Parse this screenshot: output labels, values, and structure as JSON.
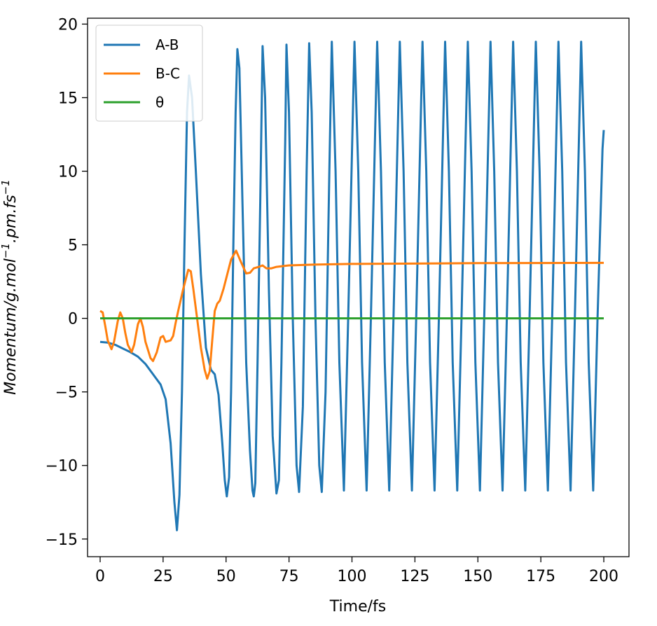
{
  "chart_data": {
    "type": "line",
    "title": "",
    "xlabel": "Time/fs",
    "ylabel_parts": [
      "Momentum/",
      "g",
      ".",
      "mol",
      "−1",
      ".",
      "pm",
      ".",
      "fs",
      "−1"
    ],
    "xlim": [
      -5,
      210
    ],
    "ylim": [
      -16.2,
      20.4
    ],
    "xticks": [
      0,
      25,
      50,
      75,
      100,
      125,
      150,
      175,
      200
    ],
    "xtick_labels": [
      "0",
      "25",
      "50",
      "75",
      "100",
      "125",
      "150",
      "175",
      "200"
    ],
    "yticks": [
      -15,
      -10,
      -5,
      0,
      5,
      10,
      15,
      20
    ],
    "ytick_labels": [
      "−15",
      "−10",
      "−5",
      "0",
      "5",
      "10",
      "15",
      "20"
    ],
    "legend_position": "top-left",
    "series": [
      {
        "name": "A-B",
        "color": "#1f77b4",
        "points": [
          [
            0,
            -1.6
          ],
          [
            3,
            -1.65
          ],
          [
            6,
            -1.8
          ],
          [
            9,
            -2.05
          ],
          [
            12,
            -2.3
          ],
          [
            15,
            -2.6
          ],
          [
            18,
            -3.1
          ],
          [
            21,
            -3.8
          ],
          [
            24,
            -4.5
          ],
          [
            26,
            -5.5
          ],
          [
            28,
            -8.5
          ],
          [
            29.5,
            -12.5
          ],
          [
            30.5,
            -14.4
          ],
          [
            31.5,
            -12
          ],
          [
            32.5,
            -5
          ],
          [
            33.5,
            5
          ],
          [
            34.5,
            14
          ],
          [
            35.3,
            16.5
          ],
          [
            36.5,
            15
          ],
          [
            38,
            10
          ],
          [
            40,
            3
          ],
          [
            42,
            -2
          ],
          [
            44,
            -3.5
          ],
          [
            45.5,
            -3.8
          ],
          [
            47,
            -5.2
          ],
          [
            48.5,
            -8.5
          ],
          [
            49.5,
            -11
          ],
          [
            50.3,
            -12.1
          ],
          [
            51.2,
            -10.8
          ],
          [
            52,
            -5
          ],
          [
            53,
            6
          ],
          [
            53.8,
            14
          ],
          [
            54.5,
            18.3
          ],
          [
            55.3,
            17
          ],
          [
            56.5,
            8
          ],
          [
            58,
            -3
          ],
          [
            59.5,
            -9
          ],
          [
            60.5,
            -11.7
          ],
          [
            61,
            -12.1
          ],
          [
            61.6,
            -11.2
          ],
          [
            62.5,
            -3
          ],
          [
            63.6,
            8
          ],
          [
            64.5,
            18.5
          ],
          [
            65.5,
            15
          ],
          [
            67,
            2
          ],
          [
            68.5,
            -8
          ],
          [
            70,
            -11.9
          ],
          [
            71,
            -11
          ],
          [
            72,
            -3
          ],
          [
            73.5,
            12
          ],
          [
            74,
            18.6
          ],
          [
            75,
            14
          ],
          [
            76.5,
            0
          ],
          [
            78,
            -10
          ],
          [
            79,
            -11.8
          ],
          [
            80.5,
            -6
          ],
          [
            82,
            10
          ],
          [
            83,
            18.7
          ],
          [
            84,
            14
          ],
          [
            85.5,
            0
          ],
          [
            87,
            -10
          ],
          [
            88,
            -11.8
          ],
          [
            89.5,
            -5
          ],
          [
            91,
            10
          ],
          [
            92,
            18.8
          ],
          [
            93.5,
            10
          ],
          [
            95,
            -3
          ],
          [
            96.8,
            -11.7
          ],
          [
            98.5,
            0
          ],
          [
            100.5,
            15
          ],
          [
            101,
            18.8
          ],
          [
            102.5,
            10
          ],
          [
            104,
            -3
          ],
          [
            105.8,
            -11.7
          ],
          [
            107.5,
            0
          ],
          [
            109.5,
            15
          ],
          [
            110,
            18.8
          ],
          [
            111.5,
            10
          ],
          [
            113,
            -3
          ],
          [
            114.8,
            -11.7
          ],
          [
            116.5,
            0
          ],
          [
            118.5,
            15
          ],
          [
            119,
            18.8
          ],
          [
            120.5,
            10
          ],
          [
            122,
            -3
          ],
          [
            123.8,
            -11.7
          ],
          [
            125.5,
            0
          ],
          [
            127.5,
            15
          ],
          [
            128,
            18.8
          ],
          [
            129.5,
            10
          ],
          [
            131,
            -3
          ],
          [
            132.8,
            -11.7
          ],
          [
            134.5,
            0
          ],
          [
            136.5,
            15
          ],
          [
            137,
            18.8
          ],
          [
            138.5,
            10
          ],
          [
            140,
            -3
          ],
          [
            141.8,
            -11.7
          ],
          [
            143.5,
            0
          ],
          [
            145.5,
            15
          ],
          [
            146,
            18.8
          ],
          [
            147.5,
            10
          ],
          [
            149,
            -3
          ],
          [
            150.8,
            -11.7
          ],
          [
            152.5,
            0
          ],
          [
            154.5,
            15
          ],
          [
            155,
            18.8
          ],
          [
            156.5,
            10
          ],
          [
            158,
            -3
          ],
          [
            159.8,
            -11.7
          ],
          [
            161.5,
            0
          ],
          [
            163.5,
            15
          ],
          [
            164,
            18.8
          ],
          [
            165.5,
            10
          ],
          [
            167,
            -3
          ],
          [
            168.8,
            -11.7
          ],
          [
            170.5,
            0
          ],
          [
            172.5,
            15
          ],
          [
            173,
            18.8
          ],
          [
            174.5,
            10
          ],
          [
            176,
            -3
          ],
          [
            177.8,
            -11.7
          ],
          [
            179.5,
            0
          ],
          [
            181.5,
            15
          ],
          [
            182,
            18.8
          ],
          [
            183.5,
            10
          ],
          [
            185,
            -3
          ],
          [
            186.8,
            -11.7
          ],
          [
            188.5,
            0
          ],
          [
            190.5,
            15
          ],
          [
            191,
            18.8
          ],
          [
            192.5,
            10
          ],
          [
            194,
            -3
          ],
          [
            195.8,
            -11.7
          ],
          [
            197.5,
            0
          ],
          [
            199.5,
            11.5
          ],
          [
            200,
            12.8
          ]
        ]
      },
      {
        "name": "B-C",
        "color": "#ff7f0e",
        "points": [
          [
            0,
            0.5
          ],
          [
            1,
            0.4
          ],
          [
            2,
            -0.5
          ],
          [
            3,
            -1.5
          ],
          [
            4.5,
            -2.1
          ],
          [
            5.5,
            -1.6
          ],
          [
            7,
            -0.2
          ],
          [
            8,
            0.4
          ],
          [
            9,
            0
          ],
          [
            10,
            -1
          ],
          [
            11,
            -1.8
          ],
          [
            12.5,
            -2.3
          ],
          [
            13.5,
            -1.8
          ],
          [
            15,
            -0.4
          ],
          [
            16,
            0
          ],
          [
            17,
            -0.6
          ],
          [
            18,
            -1.6
          ],
          [
            20,
            -2.7
          ],
          [
            21,
            -2.9
          ],
          [
            22.5,
            -2.3
          ],
          [
            24,
            -1.3
          ],
          [
            25,
            -1.2
          ],
          [
            26,
            -1.6
          ],
          [
            28,
            -1.5
          ],
          [
            29,
            -1.2
          ],
          [
            30,
            -0.3
          ],
          [
            31,
            0.5
          ],
          [
            33,
            2
          ],
          [
            35,
            3.3
          ],
          [
            36,
            3.2
          ],
          [
            37,
            2
          ],
          [
            38.5,
            0
          ],
          [
            40,
            -2
          ],
          [
            41.5,
            -3.5
          ],
          [
            42.5,
            -4.1
          ],
          [
            43.5,
            -3.6
          ],
          [
            44.5,
            -1.5
          ],
          [
            45.5,
            0.5
          ],
          [
            46.5,
            1
          ],
          [
            47.5,
            1.2
          ],
          [
            49,
            2
          ],
          [
            50.5,
            3
          ],
          [
            52,
            4
          ],
          [
            54,
            4.6
          ],
          [
            56,
            3.8
          ],
          [
            58,
            3.05
          ],
          [
            59.5,
            3.1
          ],
          [
            61,
            3.4
          ],
          [
            63,
            3.5
          ],
          [
            64.5,
            3.6
          ],
          [
            66,
            3.4
          ],
          [
            68,
            3.4
          ],
          [
            70,
            3.5
          ],
          [
            75,
            3.6
          ],
          [
            85,
            3.65
          ],
          [
            100,
            3.7
          ],
          [
            120,
            3.72
          ],
          [
            150,
            3.75
          ],
          [
            175,
            3.76
          ],
          [
            200,
            3.77
          ]
        ]
      },
      {
        "name": "θ",
        "color": "#2ca02c",
        "points": [
          [
            0,
            0
          ],
          [
            200,
            0
          ]
        ]
      }
    ]
  }
}
